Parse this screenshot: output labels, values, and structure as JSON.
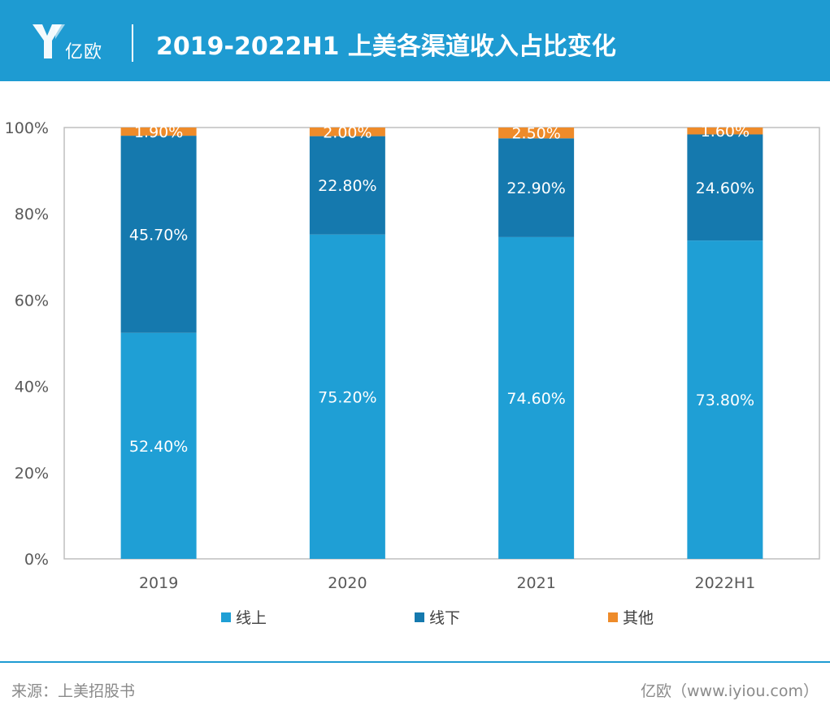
{
  "header": {
    "brand": "亿欧",
    "title": "2019-2022H1 上美各渠道收入占比变化"
  },
  "footer": {
    "source": "来源：上美招股书",
    "credit": "亿欧（www.iyiou.com）"
  },
  "colors": {
    "header_bg": "#1e9bd2",
    "online": "#1f9fd5",
    "offline": "#1579ae",
    "other": "#ee8b2a"
  },
  "chart_data": {
    "type": "bar",
    "stacked": true,
    "categories": [
      "2019",
      "2020",
      "2021",
      "2022H1"
    ],
    "ylim": [
      0,
      100
    ],
    "yticks": [
      "0%",
      "20%",
      "40%",
      "60%",
      "80%",
      "100%"
    ],
    "series": [
      {
        "name": "线上",
        "values": [
          52.4,
          75.2,
          74.6,
          73.8
        ],
        "labels": [
          "52.40%",
          "75.20%",
          "74.60%",
          "73.80%"
        ],
        "color": "#1f9fd5"
      },
      {
        "name": "线下",
        "values": [
          45.7,
          22.8,
          22.9,
          24.6
        ],
        "labels": [
          "45.70%",
          "22.80%",
          "22.90%",
          "24.60%"
        ],
        "color": "#1579ae"
      },
      {
        "name": "其他",
        "values": [
          1.9,
          2.0,
          2.5,
          1.6
        ],
        "labels": [
          "1.90%",
          "2.00%",
          "2.50%",
          "1.60%"
        ],
        "color": "#ee8b2a"
      }
    ],
    "legend_position": "bottom",
    "grid": false
  }
}
